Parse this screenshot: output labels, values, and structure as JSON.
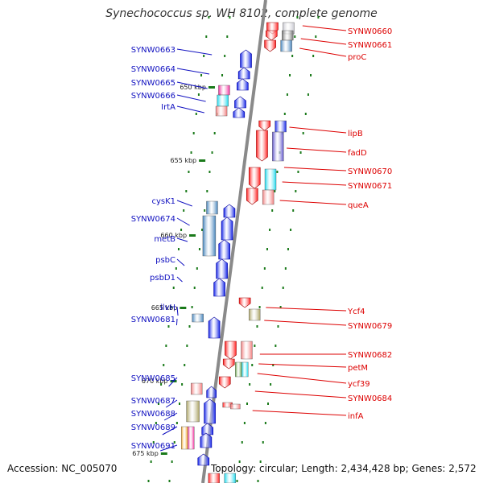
{
  "title": "Synechococcus sp. WH 8102, complete genome",
  "accession": "Accession: NC_005070",
  "topology": "Topology: circular; Length: 2,434,428 bp; Genes: 2,572",
  "colors": {
    "backbone": "#8a8a8a",
    "left_label": "#1010c0",
    "right_label": "#dd0000",
    "tick": "#1a7a1a"
  },
  "scale_labels": [
    "650 kbp",
    "655 kbp",
    "660 kbp",
    "665 kbp",
    "670 kbp",
    "675 kbp"
  ],
  "left_genes": [
    "SYNW0663",
    "SYNW0664",
    "SYNW0665",
    "SYNW0666",
    "IrtA",
    "cysK1",
    "SYNW0674",
    "metB",
    "psbC",
    "psbD1",
    "ilvH",
    "SYNW0681",
    "SYNW0685",
    "SYNW0687",
    "SYNW0688",
    "SYNW0689",
    "SYNW0691"
  ],
  "right_genes": [
    "SYNW0660",
    "SYNW0661",
    "proC",
    "lipB",
    "fadD",
    "SYNW0670",
    "SYNW0671",
    "queA",
    "Ycf4",
    "SYNW0679",
    "SYNW0682",
    "petM",
    "ycf39",
    "SYNW0684",
    "infA"
  ]
}
